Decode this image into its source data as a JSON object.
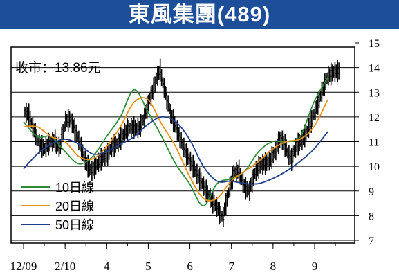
{
  "title": "東風集團(489)",
  "annotation": "收市：13.86元",
  "chart_data": {
    "type": "line",
    "ylim": [
      7,
      15
    ],
    "y_ticks": [
      7,
      8,
      9,
      10,
      11,
      12,
      13,
      14,
      15
    ],
    "grid": "horizontal",
    "x_tick_labels": [
      "12/09",
      "2/10",
      "4",
      "5",
      "6",
      "7",
      "8",
      "9"
    ],
    "legend_position": "bottom-left",
    "close": 13.86,
    "x": [
      0,
      6,
      12,
      18,
      24,
      30,
      36,
      42,
      48,
      54,
      60,
      66,
      72,
      78,
      84,
      90,
      96,
      102,
      108,
      114,
      120,
      126,
      132,
      138,
      144,
      150,
      156,
      162,
      168,
      174,
      180,
      186,
      192,
      198,
      204,
      210,
      216,
      222,
      228,
      234,
      240,
      246,
      252,
      258,
      264,
      270,
      276,
      282,
      288,
      294,
      300,
      306,
      312,
      318,
      324,
      330,
      336,
      342,
      348,
      354,
      360,
      366,
      372,
      378,
      384,
      390,
      396,
      402,
      408,
      414,
      420,
      426,
      432,
      438,
      444,
      450
    ],
    "price": [
      12.2,
      11.6,
      11.0,
      10.7,
      10.9,
      11.1,
      10.6,
      11.7,
      12.0,
      11.5,
      10.9,
      10.2,
      9.8,
      10.0,
      10.3,
      10.4,
      10.8,
      10.9,
      11.2,
      11.5,
      11.6,
      11.5,
      11.8,
      12.6,
      13.1,
      14.0,
      13.2,
      12.3,
      11.7,
      11.2,
      10.6,
      10.2,
      9.8,
      9.4,
      9.0,
      8.6,
      8.4,
      7.8,
      8.7,
      9.6,
      9.9,
      9.3,
      8.9,
      9.6,
      10.0,
      10.1,
      10.2,
      10.5,
      11.2,
      10.9,
      10.2,
      10.8,
      11.0,
      11.3,
      11.8,
      12.4,
      13.0,
      13.6,
      13.8,
      13.86
    ],
    "price_x_start": 0,
    "price_x_step": 7.6,
    "series": [
      {
        "name": "10日線",
        "color": "#2e8b3a",
        "x": [
          0,
          20,
          40,
          60,
          80,
          100,
          120,
          140,
          160,
          180,
          200,
          220,
          240,
          260,
          280,
          300,
          320,
          340,
          360,
          380,
          400,
          420,
          440
        ],
        "values": [
          11.8,
          11.2,
          11.2,
          10.6,
          10.1,
          10.4,
          11.2,
          12.0,
          13.1,
          12.2,
          11.2,
          10.1,
          9.3,
          8.4,
          9.3,
          9.5,
          9.8,
          10.6,
          11.0,
          11.0,
          11.2,
          12.6,
          13.6
        ]
      },
      {
        "name": "20日線",
        "color": "#e8901a",
        "x": [
          0,
          20,
          40,
          60,
          80,
          100,
          120,
          140,
          160,
          180,
          200,
          220,
          240,
          260,
          280,
          300,
          320,
          340,
          360,
          380,
          400,
          420,
          440
        ],
        "values": [
          11.6,
          11.6,
          11.2,
          11.0,
          10.4,
          10.3,
          10.8,
          11.6,
          12.6,
          12.7,
          11.7,
          10.8,
          9.6,
          8.7,
          8.7,
          9.4,
          9.8,
          10.2,
          10.7,
          11.0,
          11.1,
          11.6,
          12.7
        ]
      },
      {
        "name": "50日線",
        "color": "#1f3f8c",
        "x": [
          0,
          20,
          40,
          60,
          80,
          100,
          120,
          140,
          160,
          180,
          200,
          220,
          240,
          260,
          280,
          300,
          320,
          340,
          360,
          380,
          400,
          420,
          440
        ],
        "values": [
          9.9,
          10.5,
          10.9,
          11.1,
          10.9,
          10.5,
          10.6,
          10.9,
          11.2,
          11.7,
          12.0,
          11.8,
          11.1,
          10.0,
          9.4,
          9.4,
          9.3,
          9.3,
          9.5,
          9.8,
          10.2,
          10.7,
          11.4
        ]
      }
    ]
  }
}
